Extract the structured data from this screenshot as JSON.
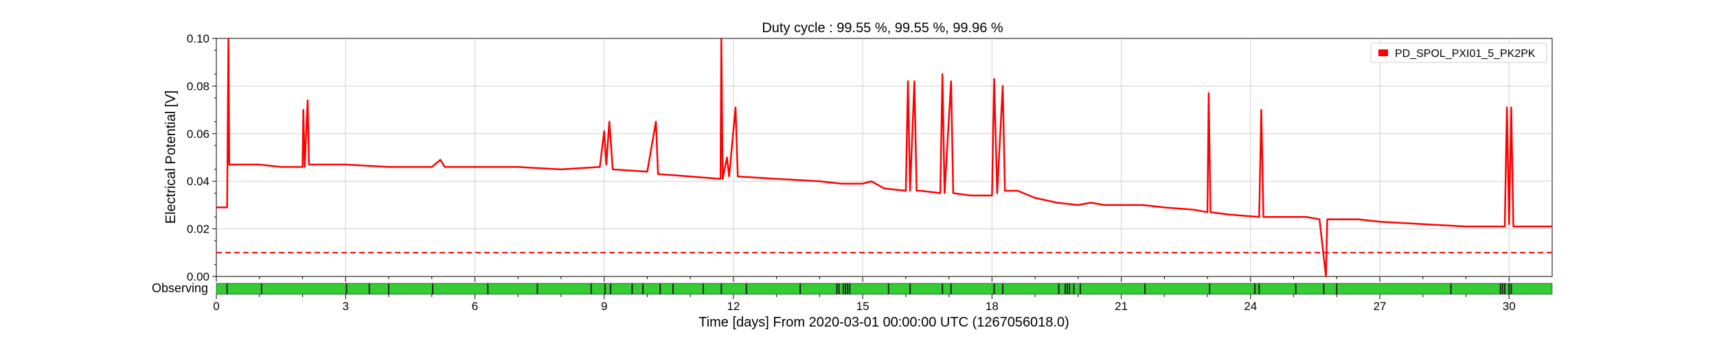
{
  "chart_data": {
    "type": "line",
    "title": "Duty cycle : 99.55 %, 99.55 %, 99.96 %",
    "xlabel": "Time [days] From 2020-03-01 00:00:00 UTC (1267056018.0)",
    "ylabel": "Electrical Potential [V]",
    "xlim": [
      0,
      31
    ],
    "ylim": [
      0,
      0.1
    ],
    "x_ticks": [
      0,
      3,
      6,
      9,
      12,
      15,
      18,
      21,
      24,
      27,
      30
    ],
    "y_ticks": [
      "0.00",
      "0.02",
      "0.04",
      "0.06",
      "0.08",
      "0.10"
    ],
    "grid": true,
    "legend_position": "top-right",
    "series": [
      {
        "name": "PD_SPOL_PXI01_5_PK2PK",
        "color": "#ff0000",
        "points": [
          [
            0,
            0.029
          ],
          [
            0.25,
            0.029
          ],
          [
            0.28,
            0.1
          ],
          [
            0.3,
            0.047
          ],
          [
            1,
            0.047
          ],
          [
            1.5,
            0.046
          ],
          [
            2,
            0.046
          ],
          [
            2.02,
            0.07
          ],
          [
            2.05,
            0.046
          ],
          [
            2.12,
            0.074
          ],
          [
            2.15,
            0.047
          ],
          [
            3,
            0.047
          ],
          [
            4,
            0.046
          ],
          [
            5,
            0.046
          ],
          [
            5.2,
            0.049
          ],
          [
            5.3,
            0.046
          ],
          [
            6,
            0.046
          ],
          [
            7,
            0.046
          ],
          [
            8,
            0.045
          ],
          [
            8.9,
            0.046
          ],
          [
            9.0,
            0.061
          ],
          [
            9.05,
            0.047
          ],
          [
            9.12,
            0.065
          ],
          [
            9.2,
            0.045
          ],
          [
            10,
            0.044
          ],
          [
            10.2,
            0.065
          ],
          [
            10.25,
            0.043
          ],
          [
            11,
            0.042
          ],
          [
            11.7,
            0.041
          ],
          [
            11.72,
            0.1
          ],
          [
            11.75,
            0.041
          ],
          [
            11.85,
            0.05
          ],
          [
            11.9,
            0.042
          ],
          [
            12.05,
            0.071
          ],
          [
            12.1,
            0.042
          ],
          [
            13,
            0.041
          ],
          [
            14,
            0.04
          ],
          [
            14.5,
            0.039
          ],
          [
            15,
            0.039
          ],
          [
            15.2,
            0.04
          ],
          [
            15.5,
            0.037
          ],
          [
            16,
            0.036
          ],
          [
            16.05,
            0.082
          ],
          [
            16.1,
            0.036
          ],
          [
            16.2,
            0.082
          ],
          [
            16.25,
            0.036
          ],
          [
            16.35,
            0.036
          ],
          [
            16.8,
            0.035
          ],
          [
            16.85,
            0.085
          ],
          [
            16.9,
            0.035
          ],
          [
            17.05,
            0.082
          ],
          [
            17.1,
            0.035
          ],
          [
            17.5,
            0.034
          ],
          [
            18,
            0.034
          ],
          [
            18.05,
            0.083
          ],
          [
            18.12,
            0.035
          ],
          [
            18.25,
            0.08
          ],
          [
            18.3,
            0.036
          ],
          [
            18.6,
            0.036
          ],
          [
            19,
            0.033
          ],
          [
            19.5,
            0.031
          ],
          [
            20,
            0.03
          ],
          [
            20.3,
            0.031
          ],
          [
            20.6,
            0.03
          ],
          [
            21,
            0.03
          ],
          [
            21.5,
            0.03
          ],
          [
            22,
            0.029
          ],
          [
            22.7,
            0.028
          ],
          [
            23.0,
            0.027
          ],
          [
            23.03,
            0.077
          ],
          [
            23.07,
            0.027
          ],
          [
            23.5,
            0.026
          ],
          [
            24.2,
            0.025
          ],
          [
            24.25,
            0.07
          ],
          [
            24.3,
            0.025
          ],
          [
            25,
            0.025
          ],
          [
            25.3,
            0.025
          ],
          [
            25.6,
            0.024
          ],
          [
            25.75,
            0.0
          ],
          [
            25.78,
            0.024
          ],
          [
            26,
            0.024
          ],
          [
            26.5,
            0.024
          ],
          [
            27,
            0.023
          ],
          [
            28,
            0.022
          ],
          [
            29,
            0.021
          ],
          [
            29.5,
            0.021
          ],
          [
            29.9,
            0.021
          ],
          [
            29.95,
            0.071
          ],
          [
            30.0,
            0.022
          ],
          [
            30.05,
            0.071
          ],
          [
            30.1,
            0.021
          ],
          [
            30.5,
            0.021
          ],
          [
            31,
            0.021
          ]
        ]
      }
    ],
    "threshold": {
      "value": 0.01,
      "style": "dashed",
      "color": "#ff0000"
    },
    "segments": {
      "label": "Observing",
      "on_color": "#33cc33",
      "off_color": "#222222",
      "gaps": [
        0.25,
        1.05,
        3.02,
        3.55,
        4.0,
        5.02,
        6.3,
        7.45,
        8.7,
        9.02,
        9.15,
        9.65,
        9.9,
        10.3,
        10.6,
        11.3,
        11.72,
        12.3,
        13.55,
        14.4,
        14.45,
        14.55,
        14.6,
        14.65,
        14.7,
        15.6,
        16.1,
        16.85,
        17.05,
        18.05,
        18.25,
        19.55,
        19.7,
        19.75,
        19.8,
        19.9,
        20.05,
        21.55,
        23.05,
        24.1,
        24.2,
        25.05,
        25.7,
        26.0,
        28.65,
        29.8,
        29.85,
        29.9,
        30.0,
        30.05
      ]
    }
  }
}
